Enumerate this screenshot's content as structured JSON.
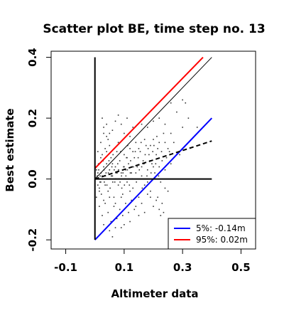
{
  "chart_data": {
    "type": "scatter",
    "title": "Scatter plot BE, time step no. 13",
    "xlabel": "Altimeter data",
    "ylabel": "Best estimate",
    "xlim": [
      -0.15,
      0.55
    ],
    "ylim": [
      -0.23,
      0.42
    ],
    "x_ticks": [
      -0.1,
      0.1,
      0.3,
      0.5
    ],
    "x_tick_labels": [
      "-0.1",
      "0.1",
      "0.3",
      "0.5"
    ],
    "y_ticks": [
      -0.2,
      0.0,
      0.2,
      0.4
    ],
    "y_tick_labels": [
      "-0.2",
      "0.0",
      "0.2",
      "0.4"
    ],
    "legend": {
      "position": "bottom-right",
      "entries": [
        {
          "label": "5%:  -0.14m",
          "color": "#0000ff"
        },
        {
          "label": "95%:  0.02m",
          "color": "#ff0000"
        }
      ]
    },
    "lines": [
      {
        "name": "identity",
        "color": "#000000",
        "style": "solid",
        "points": [
          [
            0.0,
            0.0
          ],
          [
            0.4,
            0.4
          ]
        ]
      },
      {
        "name": "upper",
        "color": "#ff0000",
        "style": "solid",
        "points": [
          [
            0.0,
            0.035
          ],
          [
            0.37,
            0.4
          ]
        ]
      },
      {
        "name": "lower",
        "color": "#0000ff",
        "style": "solid",
        "points": [
          [
            0.0,
            -0.2
          ],
          [
            0.4,
            0.2
          ]
        ]
      },
      {
        "name": "regression",
        "color": "#000000",
        "style": "dashed",
        "points": [
          [
            0.0,
            0.0
          ],
          [
            0.4,
            0.125
          ]
        ]
      },
      {
        "name": "zero-horizontal",
        "color": "#000000",
        "style": "solid",
        "points": [
          [
            0.0,
            0.0
          ],
          [
            0.4,
            0.0
          ]
        ]
      },
      {
        "name": "zero-vertical",
        "color": "#000000",
        "style": "solid",
        "points": [
          [
            0.0,
            -0.2
          ],
          [
            0.0,
            0.4
          ]
        ]
      }
    ],
    "points": [
      [
        0.01,
        0.02
      ],
      [
        0.02,
        -0.01
      ],
      [
        0.03,
        0.04
      ],
      [
        0.005,
        0.0
      ],
      [
        0.015,
        -0.03
      ],
      [
        0.025,
        0.01
      ],
      [
        0.035,
        -0.02
      ],
      [
        0.04,
        0.05
      ],
      [
        0.05,
        0.03
      ],
      [
        0.045,
        -0.04
      ],
      [
        0.055,
        0.07
      ],
      [
        0.06,
        0.01
      ],
      [
        0.065,
        -0.06
      ],
      [
        0.07,
        0.04
      ],
      [
        0.075,
        0.09
      ],
      [
        0.08,
        -0.02
      ],
      [
        0.085,
        0.06
      ],
      [
        0.09,
        0.02
      ],
      [
        0.095,
        -0.05
      ],
      [
        0.1,
        0.08
      ],
      [
        0.105,
        0.03
      ],
      [
        0.11,
        -0.01
      ],
      [
        0.115,
        0.05
      ],
      [
        0.12,
        0.1
      ],
      [
        0.125,
        0.02
      ],
      [
        0.13,
        -0.03
      ],
      [
        0.135,
        0.07
      ],
      [
        0.14,
        0.12
      ],
      [
        0.145,
        0.04
      ],
      [
        0.15,
        -0.06
      ],
      [
        0.155,
        0.09
      ],
      [
        0.16,
        0.01
      ],
      [
        0.165,
        0.06
      ],
      [
        0.17,
        -0.02
      ],
      [
        0.175,
        0.11
      ],
      [
        0.18,
        0.03
      ],
      [
        0.185,
        0.08
      ],
      [
        0.19,
        -0.04
      ],
      [
        0.195,
        0.05
      ],
      [
        0.2,
        0.13
      ],
      [
        0.205,
        0.02
      ],
      [
        0.21,
        -0.07
      ],
      [
        0.215,
        0.1
      ],
      [
        0.22,
        0.04
      ],
      [
        0.225,
        -0.01
      ],
      [
        0.23,
        0.06
      ],
      [
        0.235,
        0.15
      ],
      [
        0.24,
        0.03
      ],
      [
        0.01,
        0.09
      ],
      [
        0.02,
        0.12
      ],
      [
        0.03,
        0.15
      ],
      [
        0.04,
        0.14
      ],
      [
        0.05,
        0.11
      ],
      [
        0.035,
        0.1
      ],
      [
        0.045,
        0.13
      ],
      [
        0.025,
        0.08
      ],
      [
        0.06,
        0.16
      ],
      [
        0.07,
        0.19
      ],
      [
        0.08,
        0.21
      ],
      [
        0.09,
        0.18
      ],
      [
        0.1,
        0.15
      ],
      [
        0.11,
        0.2
      ],
      [
        0.12,
        0.14
      ],
      [
        0.13,
        0.17
      ],
      [
        0.015,
        -0.09
      ],
      [
        0.025,
        -0.12
      ],
      [
        0.035,
        -0.08
      ],
      [
        0.045,
        -0.11
      ],
      [
        0.055,
        -0.14
      ],
      [
        0.065,
        -0.09
      ],
      [
        0.075,
        -0.13
      ],
      [
        0.085,
        -0.1
      ],
      [
        0.095,
        -0.12
      ],
      [
        0.105,
        -0.08
      ],
      [
        0.115,
        -0.11
      ],
      [
        0.125,
        -0.07
      ],
      [
        0.14,
        -0.09
      ],
      [
        0.16,
        -0.08
      ],
      [
        0.18,
        -0.05
      ],
      [
        0.2,
        -0.09
      ],
      [
        0.22,
        -0.1
      ],
      [
        0.225,
        -0.12
      ],
      [
        0.23,
        -0.08
      ],
      [
        0.215,
        -0.06
      ],
      [
        0.19,
        -0.06
      ],
      [
        0.17,
        -0.11
      ],
      [
        0.15,
        -0.12
      ],
      [
        0.135,
        -0.1
      ],
      [
        0.005,
        0.03
      ],
      [
        0.01,
        -0.02
      ],
      [
        0.012,
        0.05
      ],
      [
        0.018,
        0.01
      ],
      [
        0.022,
        -0.05
      ],
      [
        0.028,
        0.06
      ],
      [
        0.032,
        -0.01
      ],
      [
        0.038,
        0.02
      ],
      [
        0.042,
        0.0
      ],
      [
        0.048,
        0.06
      ],
      [
        0.052,
        -0.03
      ],
      [
        0.058,
        0.04
      ],
      [
        0.062,
        0.08
      ],
      [
        0.068,
        -0.01
      ],
      [
        0.072,
        0.02
      ],
      [
        0.078,
        0.05
      ],
      [
        0.082,
        0.0
      ],
      [
        0.088,
        0.09
      ],
      [
        0.092,
        -0.03
      ],
      [
        0.098,
        0.04
      ],
      [
        0.102,
        0.0
      ],
      [
        0.108,
        0.07
      ],
      [
        0.112,
        0.11
      ],
      [
        0.118,
        -0.02
      ],
      [
        0.122,
        0.06
      ],
      [
        0.128,
        0.0
      ],
      [
        0.132,
        0.04
      ],
      [
        0.138,
        0.09
      ],
      [
        0.142,
        -0.01
      ],
      [
        0.148,
        0.07
      ],
      [
        0.152,
        0.03
      ],
      [
        0.158,
        0.12
      ],
      [
        0.162,
        -0.03
      ],
      [
        0.168,
        0.05
      ],
      [
        0.172,
        0.08
      ],
      [
        0.178,
        0.01
      ],
      [
        0.182,
        0.1
      ],
      [
        0.188,
        0.06
      ],
      [
        0.192,
        0.02
      ],
      [
        0.198,
        0.09
      ],
      [
        0.202,
        0.11
      ],
      [
        0.208,
        0.05
      ],
      [
        0.212,
        0.14
      ],
      [
        0.218,
        0.01
      ],
      [
        0.228,
        0.09
      ],
      [
        0.24,
        0.12
      ],
      [
        0.25,
        0.1
      ],
      [
        0.26,
        0.05
      ],
      [
        0.26,
        0.15
      ],
      [
        0.27,
        0.12
      ],
      [
        0.28,
        0.22
      ],
      [
        0.29,
        0.08
      ],
      [
        0.3,
        0.17
      ],
      [
        0.22,
        0.2
      ],
      [
        0.24,
        0.18
      ],
      [
        0.2,
        0.19
      ],
      [
        0.18,
        0.17
      ],
      [
        0.16,
        0.18
      ],
      [
        0.26,
        0.25
      ],
      [
        0.31,
        0.25
      ],
      [
        0.32,
        0.2
      ],
      [
        0.35,
        0.17
      ],
      [
        0.33,
        0.13
      ],
      [
        0.3,
        0.26
      ],
      [
        0.005,
        -0.06
      ],
      [
        0.015,
        -0.04
      ],
      [
        0.02,
        0.07
      ],
      [
        0.03,
        -0.07
      ],
      [
        0.04,
        0.09
      ],
      [
        0.05,
        -0.06
      ],
      [
        0.06,
        0.05
      ],
      [
        0.07,
        -0.08
      ],
      [
        0.08,
        0.12
      ],
      [
        0.09,
        -0.06
      ],
      [
        0.1,
        0.04
      ],
      [
        0.11,
        0.07
      ],
      [
        0.12,
        -0.04
      ],
      [
        0.13,
        0.09
      ],
      [
        0.14,
        0.02
      ],
      [
        0.15,
        0.1
      ],
      [
        0.16,
        0.04
      ],
      [
        0.17,
        0.13
      ],
      [
        0.18,
        -0.01
      ],
      [
        0.19,
        0.11
      ],
      [
        0.2,
        0.04
      ],
      [
        0.21,
        0.08
      ],
      [
        0.22,
        0.12
      ],
      [
        0.23,
        0.03
      ],
      [
        0.008,
        0.01
      ],
      [
        0.013,
        0.03
      ],
      [
        0.017,
        -0.01
      ],
      [
        0.021,
        0.02
      ],
      [
        0.027,
        0.0
      ],
      [
        0.031,
        0.03
      ],
      [
        0.036,
        0.01
      ],
      [
        0.041,
        -0.02
      ],
      [
        0.046,
        0.02
      ],
      [
        0.051,
        0.0
      ],
      [
        0.056,
        0.01
      ],
      [
        0.061,
        -0.01
      ],
      [
        0.066,
        0.03
      ],
      [
        0.071,
        0.0
      ],
      [
        0.076,
        0.02
      ],
      [
        0.081,
        0.03
      ],
      [
        0.086,
        -0.01
      ],
      [
        0.091,
        0.01
      ],
      [
        0.096,
        0.02
      ],
      [
        0.101,
        -0.02
      ],
      [
        0.106,
        0.01
      ],
      [
        0.111,
        0.03
      ],
      [
        0.116,
        0.0
      ],
      [
        0.121,
        0.02
      ],
      [
        0.025,
        0.2
      ],
      [
        0.03,
        0.17
      ],
      [
        0.04,
        0.18
      ],
      [
        0.05,
        0.15
      ],
      [
        0.03,
        -0.15
      ],
      [
        0.05,
        -0.17
      ],
      [
        0.07,
        -0.16
      ],
      [
        0.06,
        -0.19
      ],
      [
        0.1,
        -0.15
      ],
      [
        0.12,
        -0.14
      ],
      [
        0.09,
        -0.16
      ],
      [
        0.235,
        -0.11
      ],
      [
        0.24,
        -0.03
      ],
      [
        0.25,
        -0.04
      ],
      [
        0.245,
        0.07
      ],
      [
        0.255,
        0.09
      ]
    ]
  }
}
